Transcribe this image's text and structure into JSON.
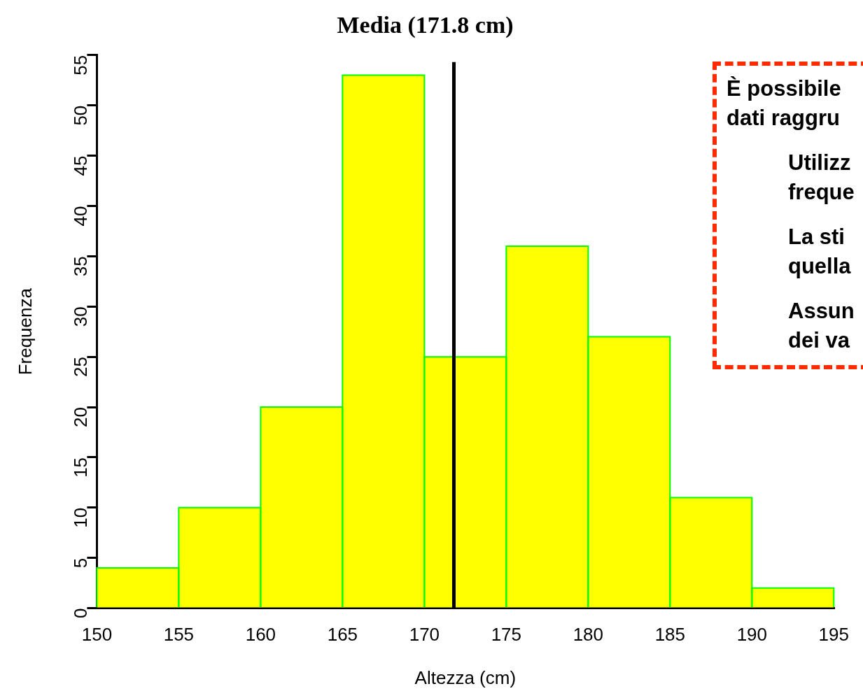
{
  "chart_data": {
    "type": "histogram",
    "title": "Media (171.8 cm)",
    "xlabel": "Altezza (cm)",
    "ylabel": "Frequenza",
    "bins": [
      150,
      155,
      160,
      165,
      170,
      175,
      180,
      185,
      190,
      195
    ],
    "values": [
      4,
      10,
      20,
      53,
      25,
      36,
      27,
      11,
      2
    ],
    "color": "#ffff00",
    "xlim": [
      150,
      195
    ],
    "xticks": [
      150,
      155,
      160,
      165,
      170,
      175,
      180,
      185,
      190,
      195
    ],
    "ylim": [
      0,
      55
    ],
    "yticks": [
      0,
      5,
      10,
      15,
      20,
      25,
      30,
      35,
      40,
      45,
      50,
      55
    ],
    "grid": false,
    "legend": false,
    "ref_lines": [
      {
        "axis": "x",
        "value": 171.8,
        "color": "#000000",
        "line_style": "solid"
      }
    ],
    "annotations": [
      "È possibile\ndati raggru",
      "Utilizz\nfreque",
      "La sti\nquella",
      "Assun\ndei va"
    ]
  }
}
